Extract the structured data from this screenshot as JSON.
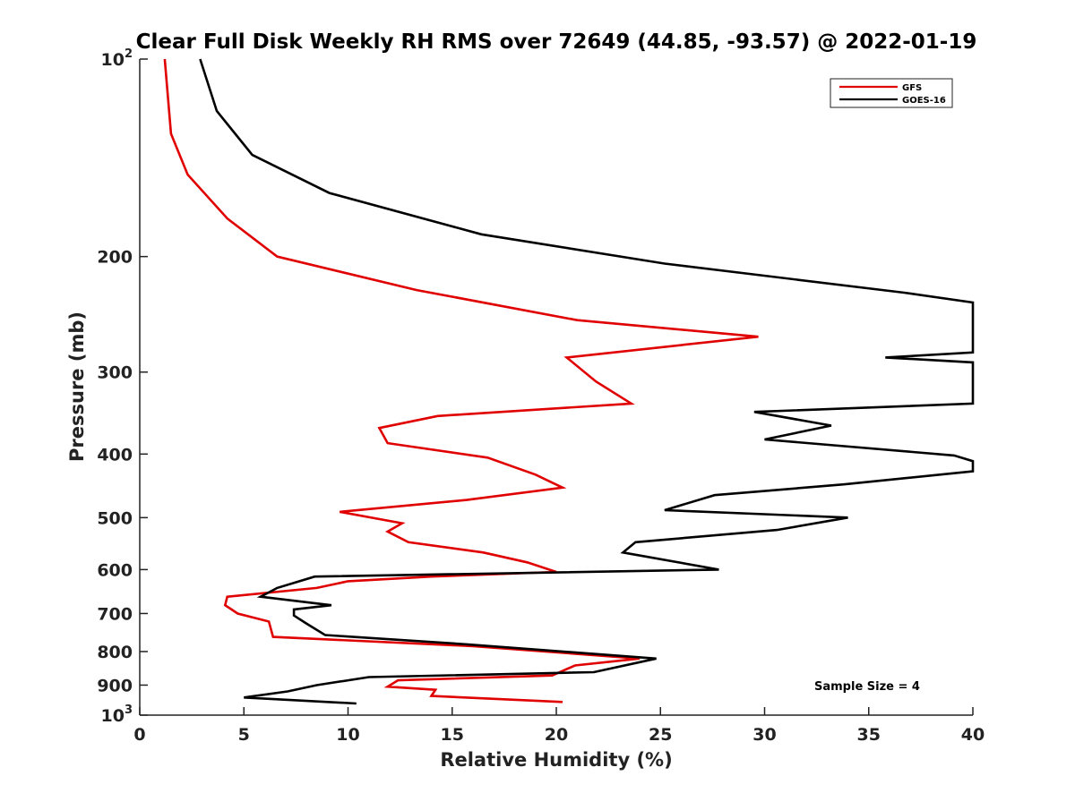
{
  "chart_data": {
    "type": "line",
    "title": "Clear Full Disk Weekly RH RMS over 72649 (44.85, -93.57) @ 2022-01-19",
    "xlabel": "Relative Humidity (%)",
    "ylabel": "Pressure (mb)",
    "xlim": [
      0,
      40
    ],
    "ylim": [
      100,
      1000
    ],
    "y_scale": "log",
    "y_reversed": true,
    "grid": false,
    "legend_position": "top-right",
    "x_ticks": [
      0,
      5,
      10,
      15,
      20,
      25,
      30,
      35,
      40
    ],
    "x_tick_labels": [
      "0",
      "5",
      "10",
      "15",
      "20",
      "25",
      "30",
      "35",
      "40"
    ],
    "y_ticks": [
      100,
      200,
      300,
      400,
      500,
      600,
      700,
      800,
      900,
      1000
    ],
    "y_tick_labels": [
      {
        "base": "10",
        "exp": "2"
      },
      {
        "base": "200",
        "exp": ""
      },
      {
        "base": "300",
        "exp": ""
      },
      {
        "base": "400",
        "exp": ""
      },
      {
        "base": "500",
        "exp": ""
      },
      {
        "base": "600",
        "exp": ""
      },
      {
        "base": "700",
        "exp": ""
      },
      {
        "base": "800",
        "exp": ""
      },
      {
        "base": "900",
        "exp": ""
      },
      {
        "base": "10",
        "exp": "3"
      }
    ],
    "annotation": "Sample Size = 4",
    "series": [
      {
        "name": "GFS",
        "color": "#e00000",
        "points": [
          [
            1.2,
            100
          ],
          [
            1.5,
            130
          ],
          [
            2.3,
            150
          ],
          [
            4.2,
            175
          ],
          [
            6.6,
            200
          ],
          [
            13.3,
            225
          ],
          [
            21.0,
            250
          ],
          [
            29.7,
            265
          ],
          [
            20.5,
            285
          ],
          [
            21.9,
            310
          ],
          [
            23.6,
            335
          ],
          [
            14.3,
            350
          ],
          [
            11.5,
            365
          ],
          [
            11.9,
            385
          ],
          [
            16.7,
            405
          ],
          [
            19.0,
            430
          ],
          [
            20.3,
            450
          ],
          [
            15.7,
            470
          ],
          [
            9.6,
            490
          ],
          [
            12.6,
            510
          ],
          [
            11.9,
            525
          ],
          [
            12.9,
            545
          ],
          [
            16.5,
            565
          ],
          [
            18.6,
            585
          ],
          [
            20.0,
            605
          ],
          [
            14.0,
            615
          ],
          [
            10.0,
            625
          ],
          [
            8.5,
            640
          ],
          [
            4.2,
            660
          ],
          [
            4.1,
            680
          ],
          [
            4.7,
            700
          ],
          [
            6.2,
            720
          ],
          [
            6.4,
            760
          ],
          [
            16.0,
            785
          ],
          [
            24.0,
            820
          ],
          [
            20.9,
            840
          ],
          [
            19.8,
            870
          ],
          [
            12.4,
            885
          ],
          [
            11.9,
            905
          ],
          [
            14.2,
            915
          ],
          [
            14.0,
            935
          ],
          [
            20.3,
            955
          ]
        ]
      },
      {
        "name": "GOES-16",
        "color": "#000000",
        "points": [
          [
            2.9,
            100
          ],
          [
            3.7,
            120
          ],
          [
            5.4,
            140
          ],
          [
            9.1,
            160
          ],
          [
            16.4,
            185
          ],
          [
            25.2,
            205
          ],
          [
            36.7,
            227
          ],
          [
            40.0,
            235
          ],
          [
            40.0,
            280
          ],
          [
            35.8,
            285
          ],
          [
            40.0,
            290
          ],
          [
            40.0,
            335
          ],
          [
            29.5,
            345
          ],
          [
            33.2,
            362
          ],
          [
            30.0,
            380
          ],
          [
            39.1,
            402
          ],
          [
            40.0,
            410
          ],
          [
            40.0,
            425
          ],
          [
            33.8,
            445
          ],
          [
            27.6,
            462
          ],
          [
            25.2,
            487
          ],
          [
            34.0,
            500
          ],
          [
            30.6,
            522
          ],
          [
            23.8,
            545
          ],
          [
            23.2,
            565
          ],
          [
            27.8,
            600
          ],
          [
            8.4,
            615
          ],
          [
            6.6,
            640
          ],
          [
            5.8,
            660
          ],
          [
            9.2,
            680
          ],
          [
            7.4,
            690
          ],
          [
            7.4,
            705
          ],
          [
            8.0,
            725
          ],
          [
            8.9,
            755
          ],
          [
            15.7,
            780
          ],
          [
            24.8,
            820
          ],
          [
            21.8,
            860
          ],
          [
            11.0,
            875
          ],
          [
            8.5,
            900
          ],
          [
            7.1,
            920
          ],
          [
            5.0,
            940
          ],
          [
            10.4,
            960
          ]
        ]
      }
    ]
  }
}
